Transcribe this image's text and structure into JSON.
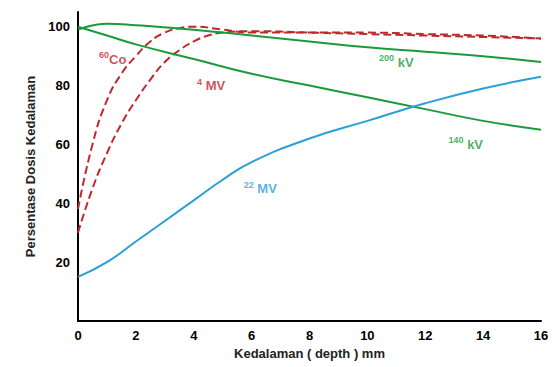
{
  "chart_data": {
    "type": "line",
    "x_label": "Kedalaman ( depth ) mm",
    "y_label": "Persentase Dosis Kedalaman",
    "xlim": [
      0,
      16
    ],
    "xticks": [
      0,
      2,
      4,
      6,
      8,
      10,
      12,
      14,
      16
    ],
    "ylim": [
      0,
      105
    ],
    "yticks": [
      20,
      40,
      60,
      80,
      100
    ],
    "grid": false,
    "series": [
      {
        "name": "60Co",
        "color": "#c0282d",
        "line_style": "dashed",
        "x": [
          0,
          0.5,
          1,
          1.5,
          2,
          2.5,
          3,
          3.5,
          4,
          5,
          6,
          8,
          10,
          12,
          14,
          16
        ],
        "values": [
          38,
          60,
          75,
          84,
          90,
          95,
          98,
          99.5,
          100,
          99,
          98,
          98,
          98,
          97.5,
          97,
          96
        ]
      },
      {
        "name": "4 MV",
        "color": "#c0282d",
        "line_style": "dashed",
        "x": [
          0,
          0.5,
          1,
          1.5,
          2,
          2.5,
          3,
          3.5,
          4,
          4.5,
          5,
          6,
          8,
          10,
          12,
          14,
          16
        ],
        "values": [
          30,
          45,
          57,
          67,
          75,
          82,
          88,
          92,
          95,
          97,
          98,
          98.5,
          98,
          97.5,
          97,
          96.5,
          96
        ]
      },
      {
        "name": "200 kV",
        "color": "#1a9a3c",
        "line_style": "solid",
        "x": [
          0,
          1,
          2,
          4,
          6,
          8,
          10,
          12,
          14,
          16
        ],
        "values": [
          99,
          101,
          100.5,
          99,
          97,
          95,
          93,
          91.5,
          90,
          88
        ]
      },
      {
        "name": "140 kV",
        "color": "#1a9a3c",
        "line_style": "solid",
        "x": [
          0,
          1,
          2,
          4,
          6,
          8,
          10,
          12,
          14,
          16
        ],
        "values": [
          100,
          97,
          94,
          89,
          84,
          80,
          76,
          72,
          68,
          65
        ]
      },
      {
        "name": "22 MV",
        "color": "#2a9fd8",
        "line_style": "solid",
        "x": [
          0,
          1,
          2,
          3,
          4,
          5,
          6,
          8,
          10,
          12,
          14,
          16
        ],
        "values": [
          15,
          20,
          27,
          34,
          41,
          48,
          54,
          62,
          68,
          74,
          79,
          83
        ]
      }
    ],
    "annotations": [
      {
        "text": "60Co",
        "x": 1.2,
        "y": 89,
        "color": "#c0282d"
      },
      {
        "text": "4 MV",
        "x": 4.6,
        "y": 80,
        "color": "#c0282d"
      },
      {
        "text": "200 kV",
        "x": 11,
        "y": 88,
        "color": "#1a9a3c"
      },
      {
        "text": "140 kV",
        "x": 13.4,
        "y": 60,
        "color": "#1a9a3c"
      },
      {
        "text": "22 MV",
        "x": 6.3,
        "y": 45,
        "color": "#2a9fd8"
      }
    ]
  }
}
